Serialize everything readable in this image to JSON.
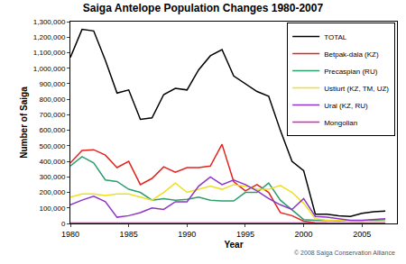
{
  "chart_data": {
    "type": "line",
    "title": "Saiga Antelope Population Changes 1980-2007",
    "x_label": "Year",
    "y_label": "Number of Saiga",
    "annotation": "© 2008 Saiga Conservation Alliance",
    "x": [
      1980,
      1981,
      1982,
      1983,
      1984,
      1985,
      1986,
      1987,
      1988,
      1989,
      1990,
      1991,
      1992,
      1993,
      1994,
      1995,
      1996,
      1997,
      1998,
      1999,
      2000,
      2001,
      2002,
      2003,
      2004,
      2005,
      2006,
      2007
    ],
    "series": [
      {
        "name": "TOTAL",
        "color": "#000000",
        "values": [
          1070000,
          1250000,
          1240000,
          1050000,
          840000,
          860000,
          670000,
          680000,
          830000,
          870000,
          860000,
          990000,
          1080000,
          1120000,
          950000,
          900000,
          850000,
          820000,
          600000,
          400000,
          340000,
          60000,
          60000,
          50000,
          45000,
          65000,
          75000,
          80000
        ]
      },
      {
        "name": "Betpak-dala (KZ)",
        "color": "#e3231c",
        "values": [
          390000,
          470000,
          475000,
          440000,
          360000,
          400000,
          250000,
          290000,
          365000,
          330000,
          360000,
          360000,
          370000,
          510000,
          270000,
          210000,
          250000,
          200000,
          70000,
          50000,
          15000,
          5000,
          3000,
          2000,
          1500,
          1500,
          1500,
          1500
        ]
      },
      {
        "name": "Precaspian (RU)",
        "color": "#2e9e6e",
        "values": [
          370000,
          430000,
          390000,
          280000,
          270000,
          220000,
          200000,
          150000,
          160000,
          150000,
          155000,
          170000,
          150000,
          145000,
          145000,
          200000,
          200000,
          260000,
          150000,
          90000,
          25000,
          20000,
          18000,
          15000,
          15000,
          14000,
          20000,
          25000
        ]
      },
      {
        "name": "Ustiurt (KZ, TM, UZ)",
        "color": "#eedf1f",
        "values": [
          170000,
          190000,
          190000,
          180000,
          190000,
          190000,
          170000,
          150000,
          200000,
          260000,
          200000,
          220000,
          240000,
          220000,
          250000,
          240000,
          220000,
          220000,
          245000,
          200000,
          130000,
          30000,
          20000,
          20000,
          15000,
          15000,
          15000,
          15000
        ]
      },
      {
        "name": "Ural (KZ, RU)",
        "color": "#8e35c8",
        "values": [
          120000,
          150000,
          175000,
          140000,
          40000,
          50000,
          70000,
          100000,
          90000,
          140000,
          140000,
          240000,
          300000,
          250000,
          280000,
          250000,
          210000,
          160000,
          120000,
          90000,
          160000,
          45000,
          40000,
          30000,
          20000,
          20000,
          25000,
          30000
        ]
      },
      {
        "name": "Mongolian",
        "color": "#e01fc0",
        "values": [
          3000,
          3000,
          3000,
          3000,
          3000,
          3000,
          3000,
          3000,
          3000,
          3000,
          3000,
          3000,
          3000,
          3000,
          3000,
          3000,
          3000,
          3000,
          3000,
          3000,
          3000,
          3000,
          3000,
          3000,
          3000,
          3000,
          3000,
          3000
        ]
      }
    ],
    "xlim": [
      1980,
      2008
    ],
    "xticks": [
      1980,
      1985,
      1990,
      1995,
      2000,
      2005
    ],
    "ylim": [
      0,
      1300000
    ],
    "yticks": [
      0,
      {
        "value": 100000,
        "label": "100,000"
      },
      {
        "value": 200000,
        "label": "200,000"
      },
      {
        "value": 300000,
        "label": "300,000"
      },
      {
        "value": 400000,
        "label": "400,000"
      },
      {
        "value": 500000,
        "label": "500,000"
      },
      {
        "value": 600000,
        "label": "600,000"
      },
      {
        "value": 700000,
        "label": "700,000"
      },
      {
        "value": 800000,
        "label": "800,000"
      },
      {
        "value": 900000,
        "label": "900,000"
      },
      {
        "value": 1000000,
        "label": "1,000,000"
      },
      {
        "value": 1100000,
        "label": "1,100,000"
      },
      {
        "value": 1200000,
        "label": "1,200,000"
      },
      {
        "value": 1300000,
        "label": "1,300,000"
      }
    ],
    "grid": false,
    "legend": "top-right"
  }
}
